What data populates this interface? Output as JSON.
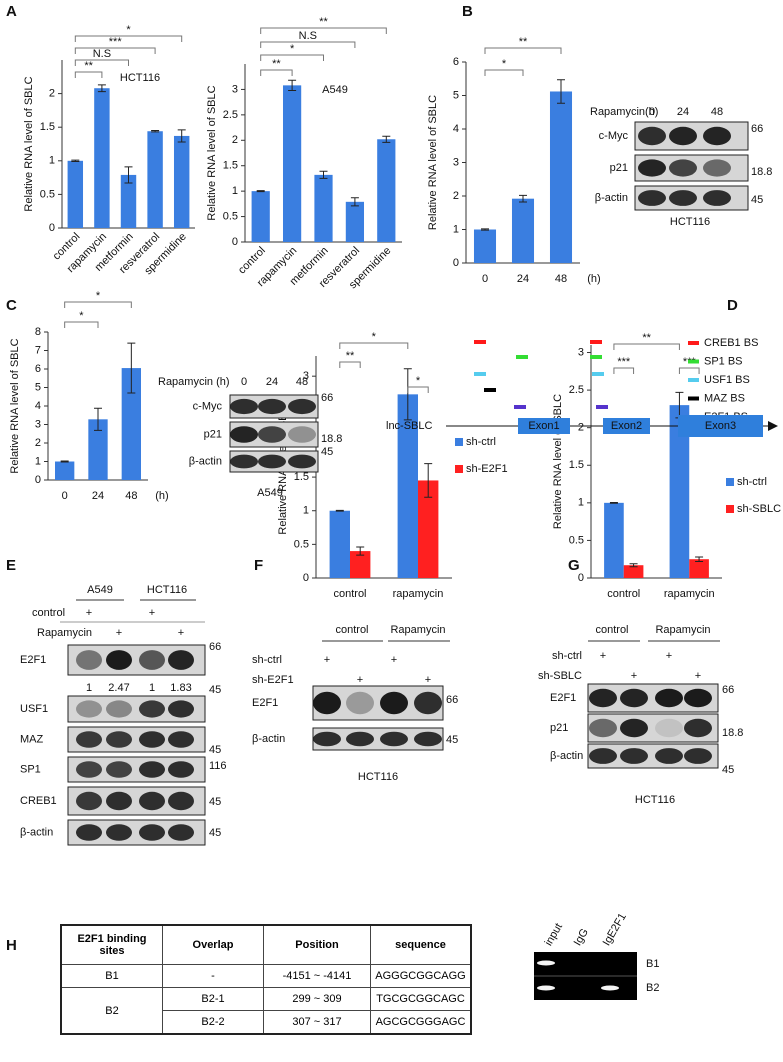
{
  "panels": [
    "A",
    "B",
    "C",
    "D",
    "E",
    "F",
    "G",
    "H"
  ],
  "chart_data": [
    {
      "type": "bar",
      "ylabel": "Relative RNA level of SBLC",
      "annotation": "HCT116",
      "categories": [
        "control",
        "rapamycin",
        "metformin",
        "resveratrol",
        "spermidine"
      ],
      "values": [
        1.0,
        2.08,
        0.79,
        1.44,
        1.37
      ],
      "errors": [
        0.01,
        0.05,
        0.12,
        0.01,
        0.09
      ],
      "significance": [
        "**",
        "N.S",
        "***",
        "*"
      ],
      "color": "#3a7ee0",
      "ylim": [
        0,
        2.5
      ],
      "yticks": [
        0,
        0.5,
        1,
        1.5,
        2
      ],
      "rotate_labels": true
    },
    {
      "type": "bar",
      "ylabel": "Relative RNA level of SBLC",
      "annotation": "A549",
      "categories": [
        "control",
        "rapamycin",
        "metformin",
        "resveratrol",
        "spermidine"
      ],
      "values": [
        1.0,
        3.08,
        1.32,
        0.79,
        2.02
      ],
      "errors": [
        0.01,
        0.1,
        0.07,
        0.08,
        0.06
      ],
      "significance": [
        "**",
        "*",
        "N.S",
        "**"
      ],
      "color": "#3a7ee0",
      "ylim": [
        0,
        3.5
      ],
      "yticks": [
        0,
        0.5,
        1,
        1.5,
        2,
        2.5,
        3
      ],
      "rotate_labels": true
    },
    {
      "type": "bar",
      "ylabel": "Relative RNA level of SBLC",
      "xlabel": "(h)",
      "categories": [
        "0",
        "24",
        "48"
      ],
      "values": [
        1.0,
        1.92,
        5.12
      ],
      "errors": [
        0.02,
        0.1,
        0.35
      ],
      "significance": [
        "*",
        "**"
      ],
      "color": "#3a7ee0",
      "ylim": [
        0,
        6
      ],
      "yticks": [
        0,
        1,
        2,
        3,
        4,
        5,
        6
      ]
    },
    {
      "type": "bar",
      "ylabel": "Relative RNA level of SBLC",
      "xlabel": "(h)",
      "categories": [
        "0",
        "24",
        "48"
      ],
      "values": [
        1.0,
        3.28,
        6.05
      ],
      "errors": [
        0.03,
        0.6,
        1.35
      ],
      "significance": [
        "*",
        "*"
      ],
      "color": "#3a7ee0",
      "ylim": [
        0,
        8
      ],
      "yticks": [
        0,
        1,
        2,
        3,
        4,
        5,
        6,
        7,
        8
      ]
    },
    {
      "type": "grouped_bar",
      "ylabel": "Relative RNA level of SBLC",
      "categories": [
        "control",
        "rapamycin"
      ],
      "series": [
        {
          "name": "sh-ctrl",
          "color": "#3a7ee0",
          "values": [
            1.0,
            2.73
          ],
          "errors": [
            0.005,
            0.38
          ]
        },
        {
          "name": "sh-E2F1",
          "color": "#ff2020",
          "values": [
            0.4,
            1.45
          ],
          "errors": [
            0.06,
            0.25
          ]
        }
      ],
      "significance": [
        "*",
        "**",
        "*"
      ],
      "ylim": [
        0,
        3.3
      ],
      "yticks": [
        0,
        0.5,
        1,
        1.5,
        2,
        2.5,
        3
      ]
    },
    {
      "type": "grouped_bar",
      "ylabel": "Relative RNA level of SBLC",
      "categories": [
        "control",
        "rapamycin"
      ],
      "series": [
        {
          "name": "sh-ctrl",
          "color": "#3a7ee0",
          "values": [
            1.0,
            2.3
          ],
          "errors": [
            0.005,
            0.17
          ]
        },
        {
          "name": "sh-SBLC",
          "color": "#ff2020",
          "values": [
            0.17,
            0.25
          ],
          "errors": [
            0.02,
            0.03
          ]
        }
      ],
      "significance": [
        "**",
        "***",
        "***"
      ],
      "ylim": [
        0,
        3.1
      ],
      "yticks": [
        0,
        0.5,
        1,
        1.5,
        2,
        2.5,
        3
      ]
    }
  ],
  "blot_b": {
    "treatment": "Rapamycin(h)",
    "lanes": [
      0,
      24,
      48
    ],
    "rows": [
      "c-Myc",
      "p21",
      "β-actin"
    ],
    "markers": [
      66,
      18.8,
      45
    ],
    "cell": "HCT116"
  },
  "blot_c": {
    "treatment": "Rapamycin (h)",
    "lanes": [
      0,
      24,
      48
    ],
    "rows": [
      "c-Myc",
      "p21",
      "β-actin"
    ],
    "markers": [
      66,
      18.8,
      45
    ],
    "cell": "A549"
  },
  "blot_e": {
    "cells": [
      "A549",
      "HCT116"
    ],
    "conditions": [
      "control",
      "Rapamycin"
    ],
    "plus": "+",
    "rows": [
      "E2F1",
      "USF1",
      "MAZ",
      "SP1",
      "CREB1",
      "β-actin"
    ],
    "markers": [
      66,
      45,
      45,
      116,
      45,
      45
    ],
    "quant": [
      1,
      2.47,
      1,
      1.83
    ]
  },
  "blot_f": {
    "groups": [
      "control",
      "Rapamycin"
    ],
    "shrnas": [
      "sh-ctrl",
      "sh-E2F1"
    ],
    "plus": "+",
    "rows": [
      "E2F1",
      "β-actin"
    ],
    "markers": [
      66,
      45
    ],
    "cell": "HCT116"
  },
  "blot_g": {
    "groups": [
      "control",
      "Rapamycin"
    ],
    "shrnas": [
      "sh-ctrl",
      "sh-SBLC"
    ],
    "plus": "+",
    "rows": [
      "E2F1",
      "p21",
      "β-actin"
    ],
    "markers": [
      66,
      18.8,
      45
    ],
    "cell": "HCT116"
  },
  "diagram": {
    "legend": [
      {
        "label": "CREB1 BS",
        "color": "#ff1a1a"
      },
      {
        "label": "SP1 BS",
        "color": "#33dd33"
      },
      {
        "label": "USF1 BS",
        "color": "#55ccee"
      },
      {
        "label": "MAZ BS",
        "color": "#000000"
      },
      {
        "label": "E2F1 BS",
        "color": "#5533cc"
      }
    ],
    "gene": "lnc-SBLC",
    "exons": [
      "Exon1",
      "Exon2",
      "Exon3"
    ]
  },
  "table": {
    "header": [
      "E2F1 binding sites",
      "Overlap",
      "Position",
      "sequence"
    ],
    "rows": [
      {
        "site": "B1",
        "subrows": [
          [
            "-",
            "-4151 ~ -4141",
            "AGGGCGGCAGG"
          ]
        ]
      },
      {
        "site": "B2",
        "subrows": [
          [
            "B2-1",
            "299 ~ 309",
            "TGCGCGGCAGC"
          ],
          [
            "B2-2",
            "307 ~ 317",
            "AGCGCGGGAGC"
          ]
        ]
      }
    ]
  },
  "gel": {
    "lanes": [
      "input",
      "IgG",
      "IgE2F1"
    ],
    "rows": [
      "B1",
      "B2"
    ]
  }
}
